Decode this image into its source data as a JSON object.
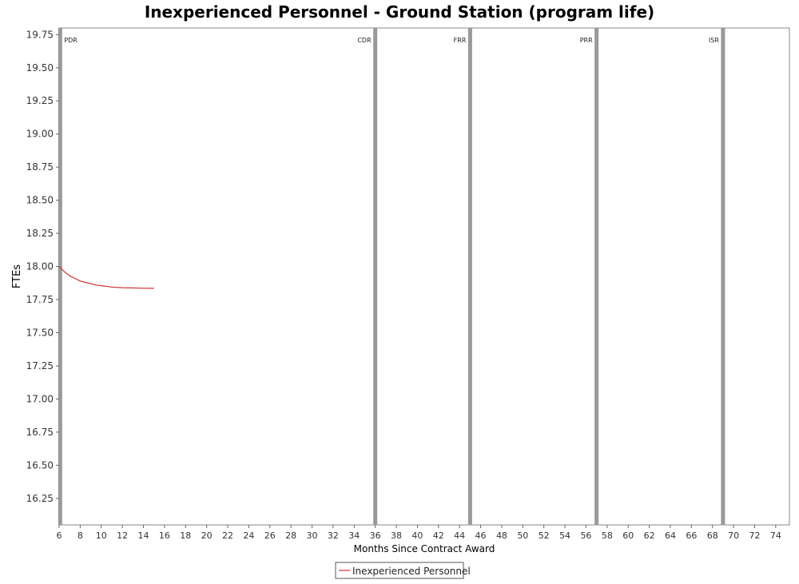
{
  "chart_data": {
    "type": "line",
    "title": "Inexperienced Personnel - Ground Station (program life)",
    "xlabel": "Months Since Contract Award",
    "ylabel": "FTEs",
    "xlim": [
      6,
      75.3
    ],
    "ylim": [
      16.05,
      19.8
    ],
    "x_ticks": [
      "6",
      "8",
      "10",
      "12",
      "14",
      "16",
      "18",
      "20",
      "22",
      "24",
      "26",
      "28",
      "30",
      "32",
      "34",
      "36",
      "38",
      "40",
      "42",
      "44",
      "46",
      "48",
      "50",
      "52",
      "54",
      "56",
      "58",
      "60",
      "62",
      "64",
      "66",
      "68",
      "70",
      "72",
      "74"
    ],
    "y_ticks": [
      "16.25",
      "16.50",
      "16.75",
      "17.00",
      "17.25",
      "17.50",
      "17.75",
      "18.00",
      "18.25",
      "18.50",
      "18.75",
      "19.00",
      "19.25",
      "19.50",
      "19.75"
    ],
    "milestones": [
      {
        "label": "PDR",
        "x": 6.1
      },
      {
        "label": "CDR",
        "x": 36
      },
      {
        "label": "FRR",
        "x": 45
      },
      {
        "label": "PRR",
        "x": 57
      },
      {
        "label": "ISR",
        "x": 69
      }
    ],
    "series": [
      {
        "name": "Inexperienced Personnel",
        "color": "#cc3333",
        "x": [
          6,
          6.5,
          7,
          7.5,
          8,
          8.5,
          9,
          9.5,
          10,
          11,
          12,
          13,
          14,
          15
        ],
        "y": [
          18.0,
          17.96,
          17.93,
          17.91,
          17.89,
          17.88,
          17.87,
          17.86,
          17.855,
          17.845,
          17.84,
          17.838,
          17.836,
          17.835
        ]
      }
    ],
    "legend_position": "bottom-center",
    "grid": false
  }
}
